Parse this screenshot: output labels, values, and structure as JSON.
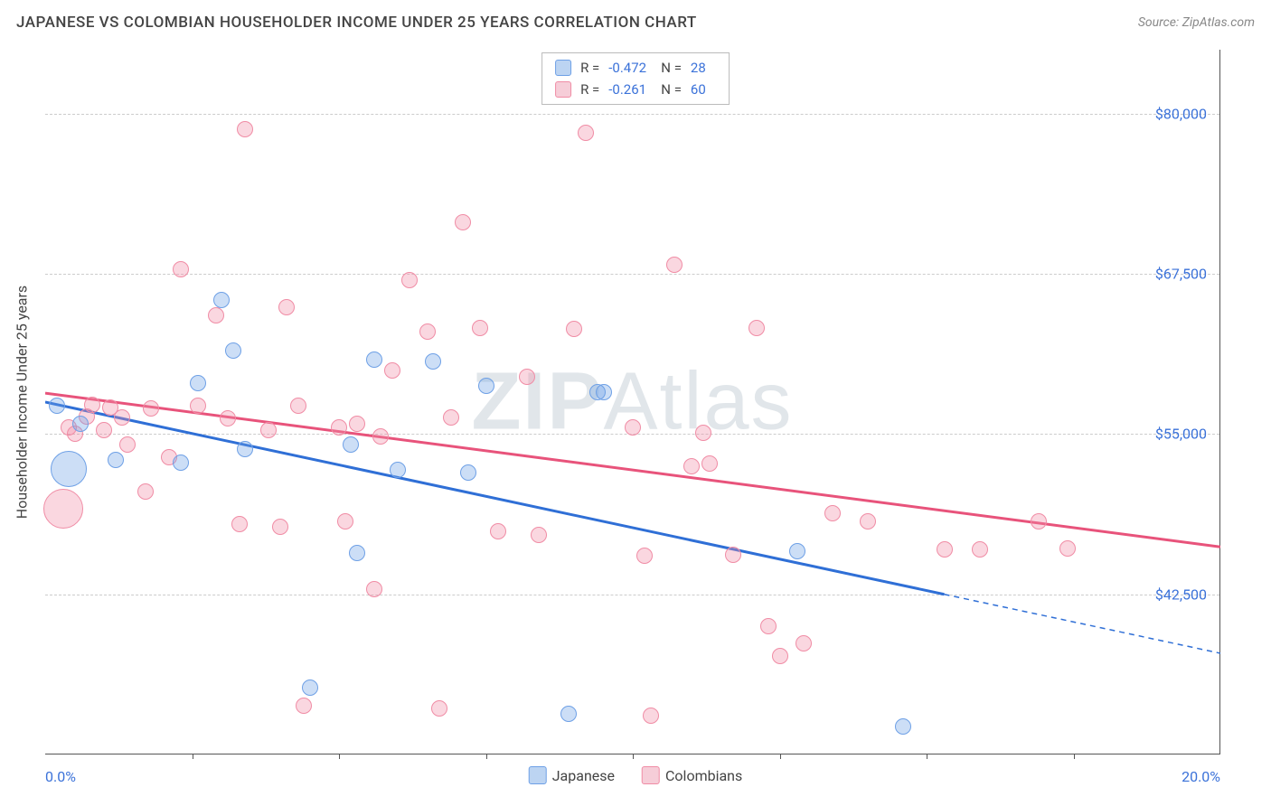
{
  "header": {
    "title": "JAPANESE VS COLOMBIAN HOUSEHOLDER INCOME UNDER 25 YEARS CORRELATION CHART",
    "source_label": "Source:",
    "source_name": "ZipAtlas.com"
  },
  "watermark": {
    "part1": "ZIP",
    "part2": "Atlas"
  },
  "chart": {
    "y_axis_title": "Householder Income Under 25 years",
    "xlim": [
      0,
      20
    ],
    "ylim": [
      30000,
      85000
    ],
    "x_labels": {
      "min": "0.0%",
      "max": "20.0%"
    },
    "x_ticks": [
      2.5,
      5.0,
      7.5,
      10.0,
      12.5,
      15.0,
      17.5
    ],
    "y_gridlines": [
      {
        "value": 42500,
        "label": "$42,500"
      },
      {
        "value": 55000,
        "label": "$55,000"
      },
      {
        "value": 67500,
        "label": "$67,500"
      },
      {
        "value": 80000,
        "label": "$80,000"
      }
    ],
    "background_color": "#ffffff",
    "grid_color": "#cccccc",
    "axis_color": "#555555",
    "tick_label_color": "#3b72d9"
  },
  "series": [
    {
      "name": "Japanese",
      "fill_color": "rgba(110,160,230,0.35)",
      "stroke_color": "#6ea0e6",
      "trend_color": "#2f6fd6",
      "swatch_fill": "#bcd4f2",
      "swatch_stroke": "#6ea0e6",
      "R": "-0.472",
      "N": "28",
      "trend": {
        "x1": 0,
        "y1": 57500,
        "x2": 15.3,
        "y2": 42500,
        "dash_x2": 20,
        "dash_y2": 37900
      },
      "points": [
        {
          "x": 0.2,
          "y": 57200,
          "r": 9
        },
        {
          "x": 0.4,
          "y": 52300,
          "r": 20
        },
        {
          "x": 0.6,
          "y": 55800,
          "r": 9
        },
        {
          "x": 1.2,
          "y": 53000,
          "r": 9
        },
        {
          "x": 2.3,
          "y": 52800,
          "r": 9
        },
        {
          "x": 2.6,
          "y": 59000,
          "r": 9
        },
        {
          "x": 3.0,
          "y": 65500,
          "r": 9
        },
        {
          "x": 3.2,
          "y": 61500,
          "r": 9
        },
        {
          "x": 3.4,
          "y": 53800,
          "r": 9
        },
        {
          "x": 4.5,
          "y": 35200,
          "r": 9
        },
        {
          "x": 5.2,
          "y": 54200,
          "r": 9
        },
        {
          "x": 5.3,
          "y": 45700,
          "r": 9
        },
        {
          "x": 5.6,
          "y": 60800,
          "r": 9
        },
        {
          "x": 6.0,
          "y": 52200,
          "r": 9
        },
        {
          "x": 6.6,
          "y": 60700,
          "r": 9
        },
        {
          "x": 7.2,
          "y": 52000,
          "r": 9
        },
        {
          "x": 7.5,
          "y": 58800,
          "r": 9
        },
        {
          "x": 8.9,
          "y": 33200,
          "r": 9
        },
        {
          "x": 9.4,
          "y": 58300,
          "r": 9
        },
        {
          "x": 9.5,
          "y": 58300,
          "r": 9
        },
        {
          "x": 12.8,
          "y": 45900,
          "r": 9
        },
        {
          "x": 14.6,
          "y": 32200,
          "r": 9
        }
      ]
    },
    {
      "name": "Colombians",
      "fill_color": "rgba(240,140,165,0.35)",
      "stroke_color": "#f08ca5",
      "trend_color": "#e8537b",
      "swatch_fill": "#f6cdd8",
      "swatch_stroke": "#f08ca5",
      "R": "-0.261",
      "N": "60",
      "trend": {
        "x1": 0,
        "y1": 58200,
        "x2": 20,
        "y2": 46200
      },
      "points": [
        {
          "x": 0.3,
          "y": 49200,
          "r": 22
        },
        {
          "x": 0.4,
          "y": 55500,
          "r": 9
        },
        {
          "x": 0.5,
          "y": 55000,
          "r": 9
        },
        {
          "x": 0.7,
          "y": 56400,
          "r": 9
        },
        {
          "x": 0.8,
          "y": 57300,
          "r": 9
        },
        {
          "x": 1.0,
          "y": 55300,
          "r": 9
        },
        {
          "x": 1.1,
          "y": 57100,
          "r": 9
        },
        {
          "x": 1.3,
          "y": 56300,
          "r": 9
        },
        {
          "x": 1.4,
          "y": 54200,
          "r": 9
        },
        {
          "x": 1.7,
          "y": 50500,
          "r": 9
        },
        {
          "x": 1.8,
          "y": 57000,
          "r": 9
        },
        {
          "x": 2.1,
          "y": 53200,
          "r": 9
        },
        {
          "x": 2.3,
          "y": 67900,
          "r": 9
        },
        {
          "x": 2.6,
          "y": 57200,
          "r": 9
        },
        {
          "x": 2.9,
          "y": 64300,
          "r": 9
        },
        {
          "x": 3.1,
          "y": 56200,
          "r": 9
        },
        {
          "x": 3.3,
          "y": 48000,
          "r": 9
        },
        {
          "x": 3.4,
          "y": 78800,
          "r": 9
        },
        {
          "x": 3.8,
          "y": 55300,
          "r": 9
        },
        {
          "x": 4.0,
          "y": 47800,
          "r": 9
        },
        {
          "x": 4.1,
          "y": 64900,
          "r": 9
        },
        {
          "x": 4.3,
          "y": 57200,
          "r": 9
        },
        {
          "x": 4.4,
          "y": 33800,
          "r": 9
        },
        {
          "x": 5.0,
          "y": 55500,
          "r": 9
        },
        {
          "x": 5.1,
          "y": 48200,
          "r": 9
        },
        {
          "x": 5.3,
          "y": 55800,
          "r": 9
        },
        {
          "x": 5.6,
          "y": 42900,
          "r": 9
        },
        {
          "x": 5.7,
          "y": 54800,
          "r": 9
        },
        {
          "x": 5.9,
          "y": 60000,
          "r": 9
        },
        {
          "x": 6.2,
          "y": 67000,
          "r": 9
        },
        {
          "x": 6.5,
          "y": 63000,
          "r": 9
        },
        {
          "x": 6.7,
          "y": 33600,
          "r": 9
        },
        {
          "x": 6.9,
          "y": 56300,
          "r": 9
        },
        {
          "x": 7.1,
          "y": 71500,
          "r": 9
        },
        {
          "x": 7.4,
          "y": 63300,
          "r": 9
        },
        {
          "x": 7.7,
          "y": 47400,
          "r": 9
        },
        {
          "x": 8.2,
          "y": 59500,
          "r": 9
        },
        {
          "x": 8.4,
          "y": 47100,
          "r": 9
        },
        {
          "x": 9.0,
          "y": 63200,
          "r": 9
        },
        {
          "x": 9.2,
          "y": 78500,
          "r": 9
        },
        {
          "x": 10.0,
          "y": 55500,
          "r": 9
        },
        {
          "x": 10.2,
          "y": 45500,
          "r": 9
        },
        {
          "x": 10.3,
          "y": 33000,
          "r": 9
        },
        {
          "x": 10.7,
          "y": 68200,
          "r": 9
        },
        {
          "x": 11.0,
          "y": 52500,
          "r": 9
        },
        {
          "x": 11.2,
          "y": 55100,
          "r": 9
        },
        {
          "x": 11.3,
          "y": 52700,
          "r": 9
        },
        {
          "x": 11.7,
          "y": 45600,
          "r": 9
        },
        {
          "x": 12.1,
          "y": 63300,
          "r": 9
        },
        {
          "x": 12.3,
          "y": 40000,
          "r": 9
        },
        {
          "x": 12.5,
          "y": 37700,
          "r": 9
        },
        {
          "x": 12.9,
          "y": 38700,
          "r": 9
        },
        {
          "x": 13.4,
          "y": 48800,
          "r": 9
        },
        {
          "x": 14.0,
          "y": 48200,
          "r": 9
        },
        {
          "x": 15.3,
          "y": 46000,
          "r": 9
        },
        {
          "x": 15.9,
          "y": 46000,
          "r": 9
        },
        {
          "x": 16.9,
          "y": 48200,
          "r": 9
        },
        {
          "x": 17.4,
          "y": 46100,
          "r": 9
        }
      ]
    }
  ],
  "legend_bottom": [
    {
      "label": "Japanese",
      "fill": "#bcd4f2",
      "stroke": "#6ea0e6"
    },
    {
      "label": "Colombians",
      "fill": "#f6cdd8",
      "stroke": "#f08ca5"
    }
  ]
}
